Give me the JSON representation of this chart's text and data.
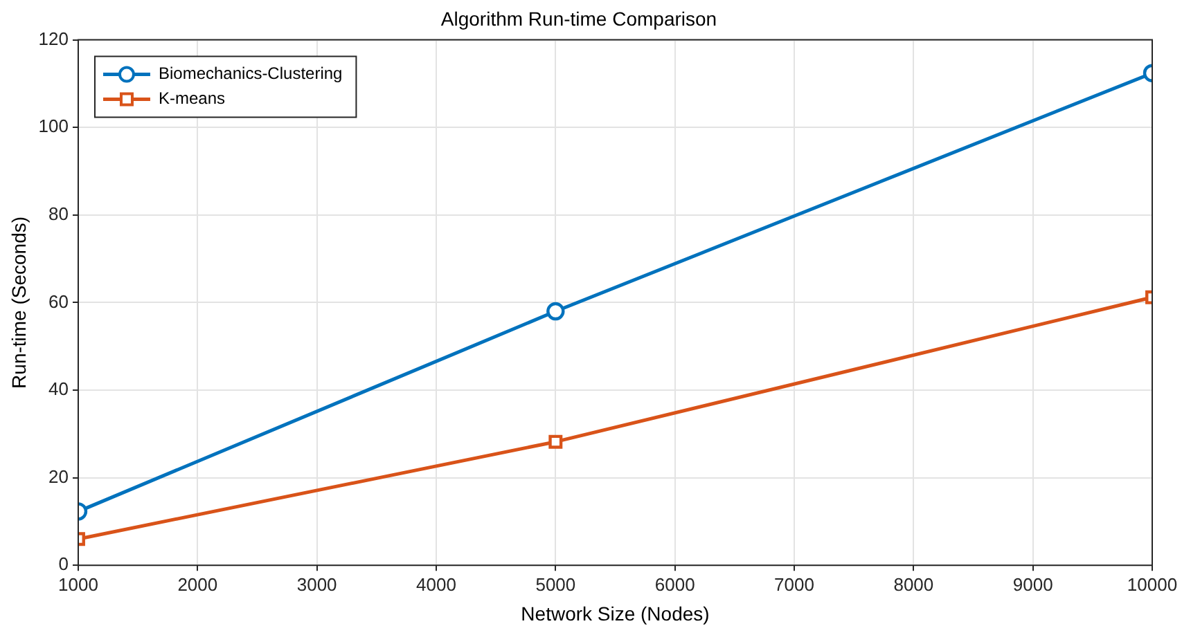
{
  "chart_data": {
    "type": "line",
    "title": "Algorithm Run-time Comparison",
    "xlabel": "Network Size (Nodes)",
    "ylabel": "Run-time (Seconds)",
    "x": [
      1000,
      5000,
      10000
    ],
    "series": [
      {
        "name": "Biomechanics-Clustering",
        "color": "#0072bd",
        "values": [
          12.3,
          58,
          112.4
        ],
        "marker": "circle"
      },
      {
        "name": "K-means",
        "color": "#d95319",
        "values": [
          6,
          28.2,
          61.2
        ],
        "marker": "square"
      }
    ],
    "xlim": [
      1000,
      10000
    ],
    "xticks": [
      1000,
      2000,
      3000,
      4000,
      5000,
      6000,
      7000,
      8000,
      9000,
      10000
    ],
    "ylim": [
      0,
      120
    ],
    "yticks": [
      0,
      20,
      40,
      60,
      80,
      100,
      120
    ],
    "grid": true,
    "legend": "top left",
    "line_style": "solid"
  }
}
